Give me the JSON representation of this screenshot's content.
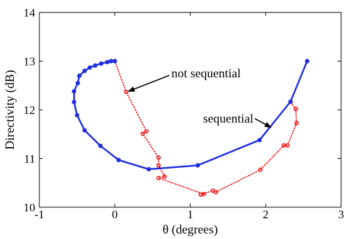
{
  "chart_data": {
    "type": "line",
    "xlabel": "θ (degrees)",
    "ylabel": "Directivity (dB)",
    "xlim": [
      -1,
      3
    ],
    "ylim": [
      10,
      14
    ],
    "xticks": [
      -1,
      0,
      1,
      2,
      3
    ],
    "yticks": [
      10,
      11,
      12,
      13,
      14
    ],
    "grid": false,
    "series": [
      {
        "color": "#1f2fe0",
        "style": "solid",
        "marker": "filled-circle",
        "points": [
          {
            "x": 0.0,
            "y": 13.0
          },
          {
            "x": -0.05,
            "y": 13.0
          },
          {
            "x": -0.1,
            "y": 12.98
          },
          {
            "x": -0.18,
            "y": 12.95
          },
          {
            "x": -0.26,
            "y": 12.91
          },
          {
            "x": -0.33,
            "y": 12.87
          },
          {
            "x": -0.4,
            "y": 12.8
          },
          {
            "x": -0.47,
            "y": 12.7
          },
          {
            "x": -0.49,
            "y": 12.55
          },
          {
            "x": -0.54,
            "y": 12.38
          },
          {
            "x": -0.54,
            "y": 12.16
          },
          {
            "x": -0.5,
            "y": 11.89
          },
          {
            "x": -0.4,
            "y": 11.58
          },
          {
            "x": -0.19,
            "y": 11.26
          },
          {
            "x": 0.05,
            "y": 10.97
          },
          {
            "x": 0.45,
            "y": 10.78
          },
          {
            "x": 1.1,
            "y": 10.86
          },
          {
            "x": 1.92,
            "y": 11.38
          },
          {
            "x": 2.33,
            "y": 12.17
          },
          {
            "x": 2.55,
            "y": 13.0
          }
        ]
      },
      {
        "color": "#ee1c1c",
        "style": "dotted",
        "marker": "open-circle",
        "points": [
          {
            "x": 0.0,
            "y": 13.0
          },
          {
            "x": 0.15,
            "y": 12.37
          },
          {
            "x": 0.42,
            "y": 11.56
          },
          {
            "x": 0.37,
            "y": 11.51
          },
          {
            "x": 0.58,
            "y": 11.02
          },
          {
            "x": 0.58,
            "y": 10.86
          },
          {
            "x": 0.66,
            "y": 10.63
          },
          {
            "x": 0.58,
            "y": 10.6
          },
          {
            "x": 1.18,
            "y": 10.27
          },
          {
            "x": 1.14,
            "y": 10.26
          },
          {
            "x": 1.3,
            "y": 10.34
          },
          {
            "x": 1.34,
            "y": 10.31
          },
          {
            "x": 1.93,
            "y": 10.77
          },
          {
            "x": 2.24,
            "y": 11.27
          },
          {
            "x": 2.29,
            "y": 11.27
          },
          {
            "x": 2.41,
            "y": 11.73
          },
          {
            "x": 2.4,
            "y": 12.02
          },
          {
            "x": 2.33,
            "y": 12.16
          },
          {
            "x": 2.55,
            "y": 13.0
          }
        ]
      }
    ],
    "annotations": [
      {
        "text": "not sequential",
        "x": 0.75,
        "y": 12.75,
        "arrow_to": {
          "x": 0.18,
          "y": 12.38
        }
      },
      {
        "text": "sequential",
        "x": 1.17,
        "y": 11.82,
        "arrow_to": {
          "x": 2.07,
          "y": 11.64
        }
      }
    ]
  }
}
